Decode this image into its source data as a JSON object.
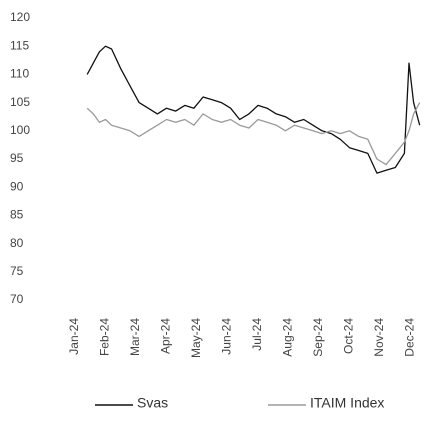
{
  "chart_data": {
    "type": "line",
    "x": [
      0.4,
      0.6,
      0.8,
      1.0,
      1.2,
      1.5,
      1.8,
      2.1,
      2.4,
      2.7,
      3.0,
      3.3,
      3.6,
      3.9,
      4.2,
      4.5,
      4.8,
      5.1,
      5.4,
      5.7,
      6.0,
      6.3,
      6.6,
      6.9,
      7.2,
      7.5,
      7.8,
      8.1,
      8.4,
      8.7,
      9.0,
      9.3,
      9.6,
      9.9,
      10.2,
      10.5,
      10.8,
      10.95,
      11.1,
      11.3
    ],
    "series": [
      {
        "name": "Svas",
        "color": "#111111",
        "values": [
          110,
          112,
          114,
          115,
          114.5,
          111,
          108,
          105,
          104,
          103,
          104,
          103.5,
          104.5,
          104,
          106,
          105.5,
          105,
          104,
          102,
          103,
          104.5,
          104,
          103,
          102.5,
          101.5,
          102,
          101,
          100,
          99.5,
          98.5,
          97,
          96.5,
          96,
          92.5,
          93,
          93.5,
          96,
          112,
          105,
          101
        ]
      },
      {
        "name": "ITAIM Index",
        "color": "#9a9a9a",
        "values": [
          104,
          103,
          101.5,
          102,
          101,
          100.5,
          100,
          99,
          100,
          101,
          102,
          101.5,
          102,
          101,
          103,
          102,
          101.5,
          102,
          101,
          100.5,
          102,
          101.5,
          101,
          100,
          101,
          100.5,
          100,
          99.5,
          100,
          99.5,
          100,
          99,
          98.5,
          95,
          94,
          96,
          98,
          100,
          103,
          105
        ]
      }
    ],
    "xlim": [
      0,
      11.5
    ],
    "xticks": [
      {
        "value": 0,
        "label": "Jan-24"
      },
      {
        "value": 1,
        "label": "Feb-24"
      },
      {
        "value": 2,
        "label": "Mar-24"
      },
      {
        "value": 3,
        "label": "Apr-24"
      },
      {
        "value": 4,
        "label": "May-24"
      },
      {
        "value": 5,
        "label": "Jun-24"
      },
      {
        "value": 6,
        "label": "Jul-24"
      },
      {
        "value": 7,
        "label": "Aug-24"
      },
      {
        "value": 8,
        "label": "Sep-24"
      },
      {
        "value": 9,
        "label": "Oct-24"
      },
      {
        "value": 10,
        "label": "Nov-24"
      },
      {
        "value": 11,
        "label": "Dec-24"
      }
    ],
    "ylim": [
      70,
      120
    ],
    "yticks": [
      70,
      75,
      80,
      85,
      90,
      95,
      100,
      105,
      110,
      115,
      120
    ]
  }
}
